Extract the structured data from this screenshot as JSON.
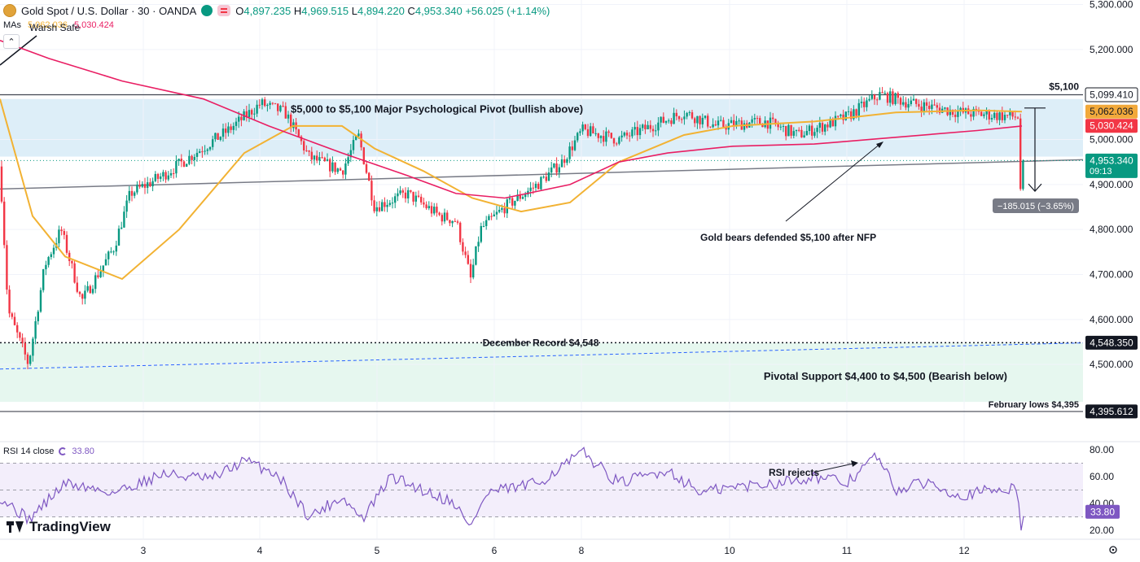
{
  "header": {
    "symbol": "Gold Spot / U.S. Dollar · 30 · OANDA",
    "open_label": "O",
    "open": "4,897.235",
    "high_label": "H",
    "high": "4,969.515",
    "low_label": "L",
    "low": "4,894.220",
    "close_label": "C",
    "close": "4,953.340",
    "change": "+56.025 (+1.14%)"
  },
  "mas_legend": {
    "label": "MAs",
    "ma1_value": "5,062.036",
    "ma2_value": "5,030.424",
    "overlay_text": "Warsh Safe"
  },
  "rsi_legend": {
    "label": "RSI 14 close",
    "value": "33.80"
  },
  "brand": {
    "name": "TradingView"
  },
  "colors": {
    "up": "#089981",
    "down": "#f23645",
    "ma_fast": "#f2b233",
    "ma_slow": "#e91e63",
    "rsi": "#7e57c2"
  },
  "chart_data": [
    {
      "type": "candlestick",
      "y_axis": {
        "ylim": [
          4325,
          5310
        ],
        "ticks": [
          "5,300.000",
          "5,200.000",
          "5,100.000",
          "5,000.000",
          "4,900.000",
          "4,800.000",
          "4,700.000",
          "4,600.000",
          "4,500.000"
        ]
      },
      "x_axis": {
        "ticks": [
          "3",
          "4",
          "5",
          "6",
          "8",
          "10",
          "11",
          "12"
        ]
      },
      "price_labels": [
        {
          "text": "5,099.410",
          "value": 5099.41,
          "style": "white"
        },
        {
          "text": "5,062.036",
          "value": 5062.036,
          "style": "orange"
        },
        {
          "text": "5,030.424",
          "value": 5030.424,
          "style": "pink"
        },
        {
          "text": "4,953.340",
          "value": 4953.34,
          "style": "green",
          "sub": "09:13"
        },
        {
          "text": "4,548.350",
          "value": 4548.35,
          "style": "black"
        },
        {
          "text": "4,395.612",
          "value": 4395.612,
          "style": "black"
        }
      ],
      "zones": [
        {
          "from": 4962,
          "to": 5090,
          "color": "#ddeef8",
          "label": "$5,000 to $5,100 Major Psychological Pivot (bullish above)"
        },
        {
          "from": 4417,
          "to": 4548,
          "color": "#e6f7ef",
          "label": "Pivotal Support $4,400 to $4,500 (Bearish below)"
        }
      ],
      "levels": [
        {
          "value": 5099.41,
          "label": "$5,100"
        },
        {
          "value": 4548.35,
          "label": "December Record $4,548",
          "style": "dotted"
        },
        {
          "value": 4395.612,
          "label": "February lows $4,395"
        }
      ],
      "annotations": [
        {
          "text": "Gold bears defended $5,100 after NFP"
        },
        {
          "text": "−185.015 (−3.65%)"
        }
      ],
      "series_close_anchors": [
        [
          0,
          4940
        ],
        [
          10,
          4620
        ],
        [
          35,
          4500
        ],
        [
          55,
          4720
        ],
        [
          75,
          4800
        ],
        [
          100,
          4640
        ],
        [
          140,
          4760
        ],
        [
          160,
          4880
        ],
        [
          200,
          4920
        ],
        [
          240,
          4970
        ],
        [
          280,
          5020
        ],
        [
          320,
          5080
        ],
        [
          350,
          5060
        ],
        [
          380,
          4960
        ],
        [
          420,
          4930
        ],
        [
          440,
          5010
        ],
        [
          460,
          4850
        ],
        [
          500,
          4880
        ],
        [
          540,
          4830
        ],
        [
          560,
          4820
        ],
        [
          578,
          4690
        ],
        [
          590,
          4800
        ],
        [
          620,
          4850
        ],
        [
          660,
          4900
        ],
        [
          690,
          4950
        ],
        [
          715,
          5020
        ],
        [
          760,
          5000
        ],
        [
          800,
          5030
        ],
        [
          840,
          5060
        ],
        [
          880,
          5030
        ],
        [
          940,
          5040
        ],
        [
          980,
          5010
        ],
        [
          1040,
          5050
        ],
        [
          1080,
          5100
        ],
        [
          1120,
          5080
        ],
        [
          1180,
          5060
        ],
        [
          1250,
          5050
        ],
        [
          1255,
          4890
        ],
        [
          1258,
          4953
        ]
      ],
      "ma_fast": [
        [
          0,
          5090
        ],
        [
          40,
          4830
        ],
        [
          80,
          4740
        ],
        [
          150,
          4690
        ],
        [
          220,
          4800
        ],
        [
          300,
          4970
        ],
        [
          360,
          5030
        ],
        [
          420,
          5030
        ],
        [
          460,
          4980
        ],
        [
          520,
          4930
        ],
        [
          580,
          4870
        ],
        [
          640,
          4840
        ],
        [
          700,
          4860
        ],
        [
          760,
          4950
        ],
        [
          840,
          5010
        ],
        [
          900,
          5030
        ],
        [
          1000,
          5040
        ],
        [
          1100,
          5060
        ],
        [
          1200,
          5065
        ],
        [
          1255,
          5062
        ]
      ],
      "ma_slow": [
        [
          0,
          5220
        ],
        [
          60,
          5180
        ],
        [
          150,
          5130
        ],
        [
          250,
          5090
        ],
        [
          330,
          5030
        ],
        [
          420,
          4970
        ],
        [
          500,
          4920
        ],
        [
          560,
          4880
        ],
        [
          620,
          4870
        ],
        [
          700,
          4900
        ],
        [
          760,
          4950
        ],
        [
          820,
          4970
        ],
        [
          900,
          4985
        ],
        [
          1000,
          4990
        ],
        [
          1100,
          5005
        ],
        [
          1200,
          5020
        ],
        [
          1255,
          5030
        ]
      ],
      "trendline_blue_dashed": [
        [
          0,
          4490
        ],
        [
          1330,
          4548
        ]
      ],
      "trendline_gray": [
        [
          0,
          4890
        ],
        [
          1330,
          4955
        ]
      ],
      "measure": {
        "from": 5070,
        "to": 4885
      }
    },
    {
      "type": "line",
      "name": "RSI 14 close",
      "ylim": [
        14,
        86
      ],
      "ticks": [
        "80.00",
        "60.00",
        "40.00",
        "20.00"
      ],
      "bands": [
        30,
        50,
        70
      ],
      "annotation": "RSI rejects",
      "values_anchors": [
        [
          0,
          45
        ],
        [
          35,
          28
        ],
        [
          80,
          55
        ],
        [
          140,
          48
        ],
        [
          200,
          62
        ],
        [
          260,
          58
        ],
        [
          300,
          72
        ],
        [
          340,
          62
        ],
        [
          380,
          30
        ],
        [
          420,
          45
        ],
        [
          445,
          28
        ],
        [
          480,
          60
        ],
        [
          520,
          50
        ],
        [
          560,
          40
        ],
        [
          575,
          22
        ],
        [
          600,
          48
        ],
        [
          660,
          55
        ],
        [
          716,
          78
        ],
        [
          760,
          55
        ],
        [
          820,
          65
        ],
        [
          860,
          48
        ],
        [
          900,
          52
        ],
        [
          960,
          56
        ],
        [
          1000,
          60
        ],
        [
          1040,
          55
        ],
        [
          1076,
          76
        ],
        [
          1100,
          50
        ],
        [
          1140,
          56
        ],
        [
          1180,
          46
        ],
        [
          1220,
          50
        ],
        [
          1248,
          52
        ],
        [
          1254,
          20
        ],
        [
          1258,
          34
        ]
      ]
    }
  ]
}
